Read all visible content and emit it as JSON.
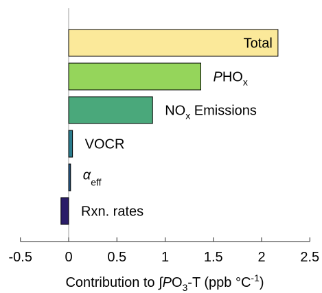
{
  "chart_data": {
    "type": "bar",
    "orientation": "horizontal",
    "categories": [
      {
        "label": "Total",
        "value": 2.17,
        "color": "#fbe99a",
        "label_placement": "inside"
      },
      {
        "label": "PHOx",
        "value": 1.37,
        "color": "#95d55b",
        "label_placement": "outside"
      },
      {
        "label": "NOx Emissions",
        "value": 0.87,
        "color": "#4aa87b",
        "label_placement": "outside"
      },
      {
        "label": "VOCR",
        "value": 0.04,
        "color": "#2b7c8d",
        "label_placement": "outside"
      },
      {
        "label": "αeff",
        "value": 0.02,
        "color": "#245785",
        "label_placement": "outside"
      },
      {
        "label": "Rxn. rates",
        "value": -0.08,
        "color": "#2a1c68",
        "label_placement": "outside"
      }
    ],
    "xlabel": "Contribution to ∫PO3-T (ppb °C-1)",
    "xlim": [
      -0.5,
      2.5
    ],
    "xticks": [
      "-0.5",
      "0",
      "0.5",
      "1",
      "1.5",
      "2",
      "2.5"
    ],
    "grid": false,
    "legend": "none"
  }
}
